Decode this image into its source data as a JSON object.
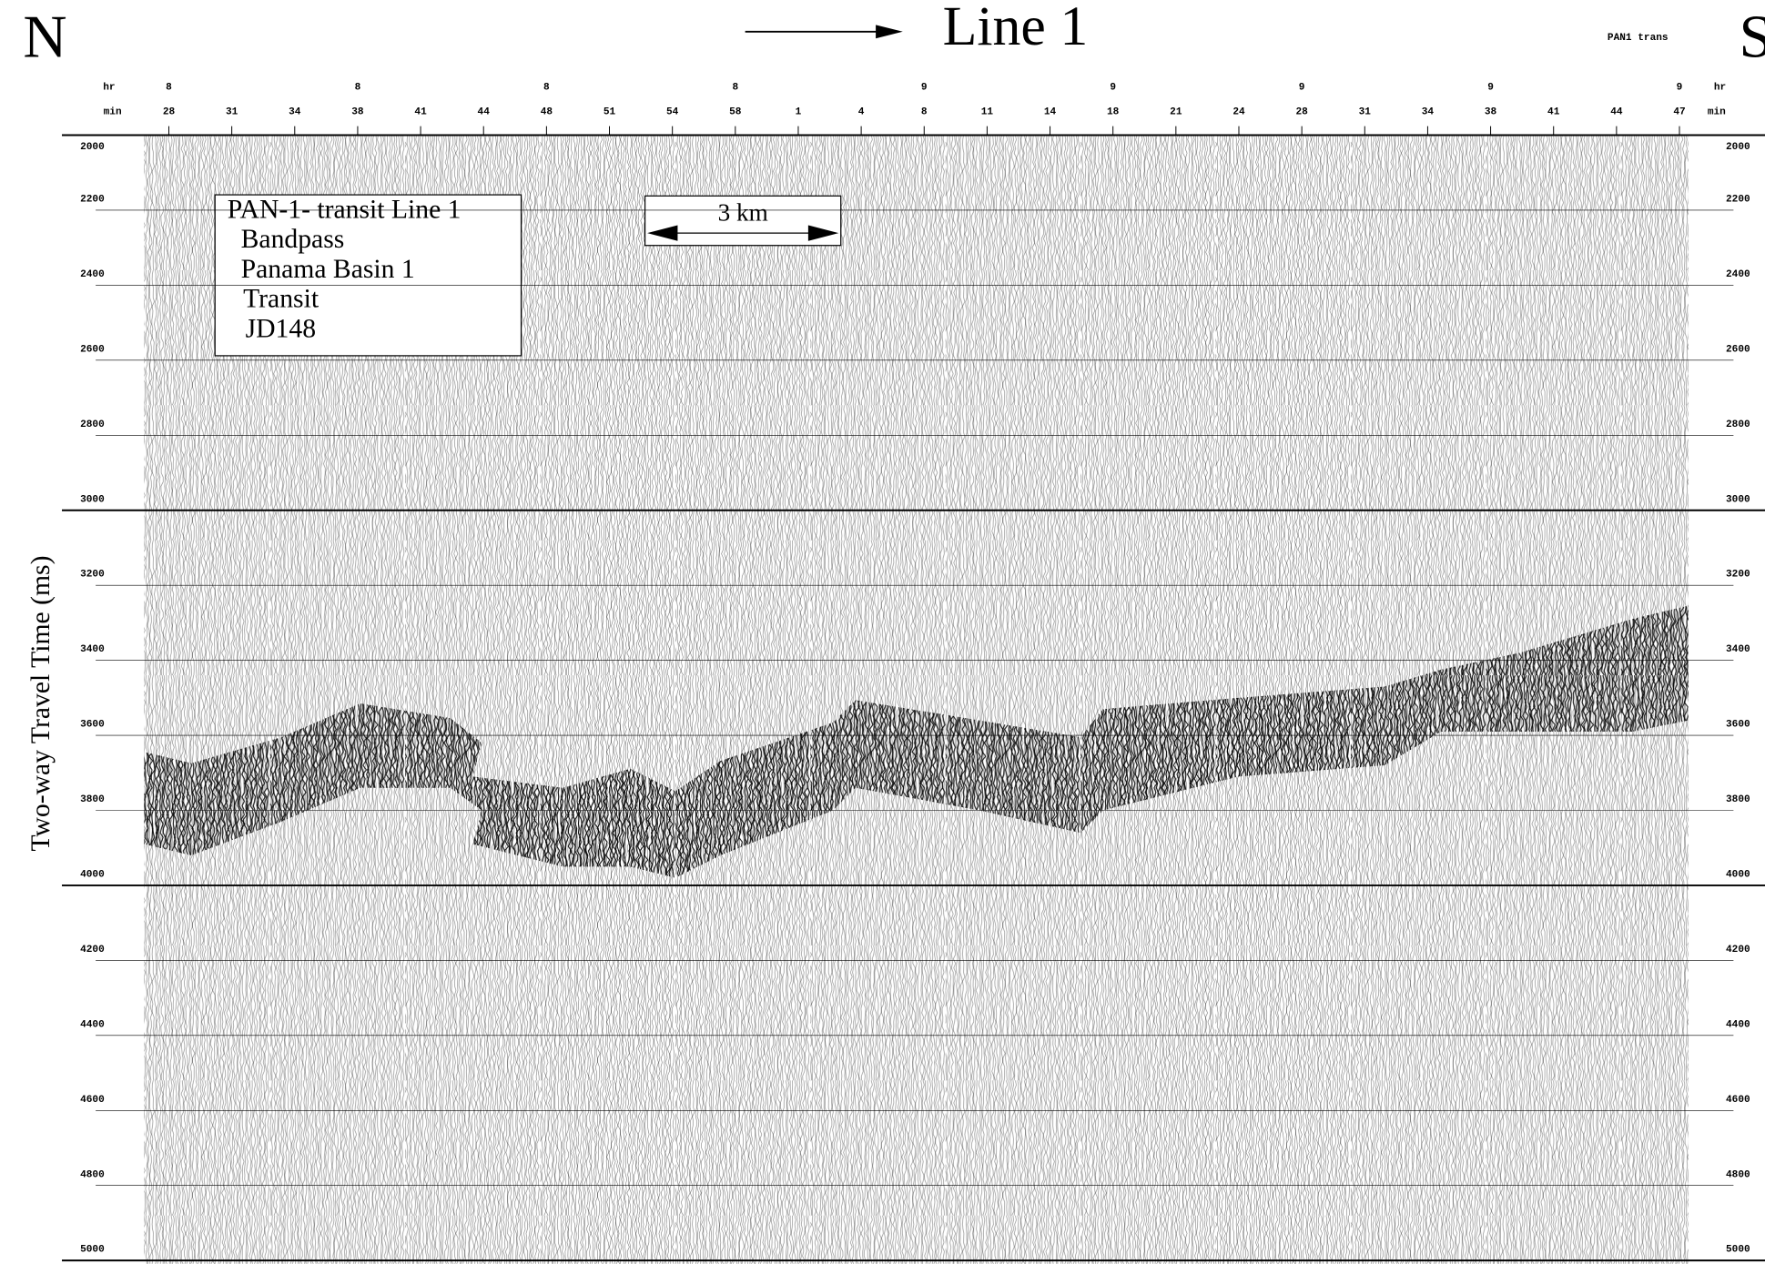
{
  "chart_data": {
    "type": "seismic",
    "title": "Line 1",
    "left_label": "N",
    "right_label": "S",
    "tag": "PAN1 trans",
    "x_label_hr": "hr",
    "x_label_min": "min",
    "ylabel": "Two-way Travel Time (ms)",
    "categories": [
      "28",
      "31",
      "34",
      "38",
      "41",
      "44",
      "48",
      "51",
      "54",
      "58",
      "1",
      "4",
      "8",
      "11",
      "14",
      "18",
      "21",
      "24",
      "28",
      "31",
      "34",
      "38",
      "41",
      "44",
      "47"
    ],
    "hours": [
      8,
      null,
      null,
      8,
      null,
      null,
      8,
      null,
      null,
      8,
      null,
      null,
      9,
      null,
      null,
      9,
      null,
      null,
      9,
      null,
      null,
      9,
      null,
      null,
      9
    ],
    "ylim": [
      2000,
      5000
    ],
    "yticks": [
      2000,
      2200,
      2400,
      2600,
      2800,
      3000,
      3200,
      3400,
      3600,
      3800,
      4000,
      4200,
      4400,
      4600,
      4800,
      5000
    ],
    "grid": true,
    "legend": [
      "PAN-1- transit Line 1",
      "Bandpass",
      "Panama Basin 1",
      "Transit",
      "JD148"
    ],
    "scale_bar": "3 km"
  }
}
